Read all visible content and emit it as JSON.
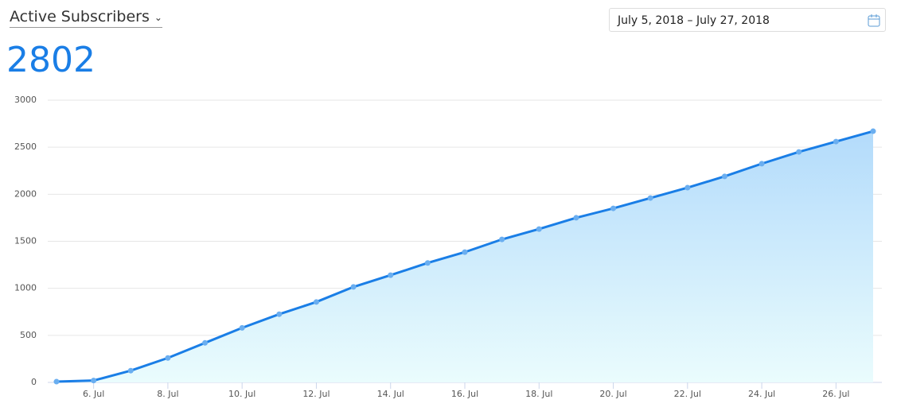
{
  "header": {
    "title": "Active Subscribers",
    "metric": "2802",
    "date_range": "July 5, 2018 – July 27, 2018"
  },
  "chart_data": {
    "type": "area",
    "categories": [
      null,
      "6. Jul",
      null,
      "8. Jul",
      null,
      "10. Jul",
      null,
      "12. Jul",
      null,
      "14. Jul",
      null,
      "16. Jul",
      null,
      "18. Jul",
      null,
      "20. Jul",
      null,
      "22. Jul",
      null,
      "24. Jul",
      null,
      "26. Jul",
      null
    ],
    "values": [
      8,
      20,
      125,
      260,
      420,
      580,
      725,
      855,
      1015,
      1140,
      1270,
      1385,
      1520,
      1630,
      1750,
      1850,
      1960,
      2070,
      2190,
      2325,
      2450,
      2560,
      2670
    ],
    "color": "#1a7ee6",
    "ylim": [
      0,
      3000
    ],
    "yticks": [
      0,
      500,
      1000,
      1500,
      2000,
      2500,
      3000
    ],
    "grid": true
  }
}
